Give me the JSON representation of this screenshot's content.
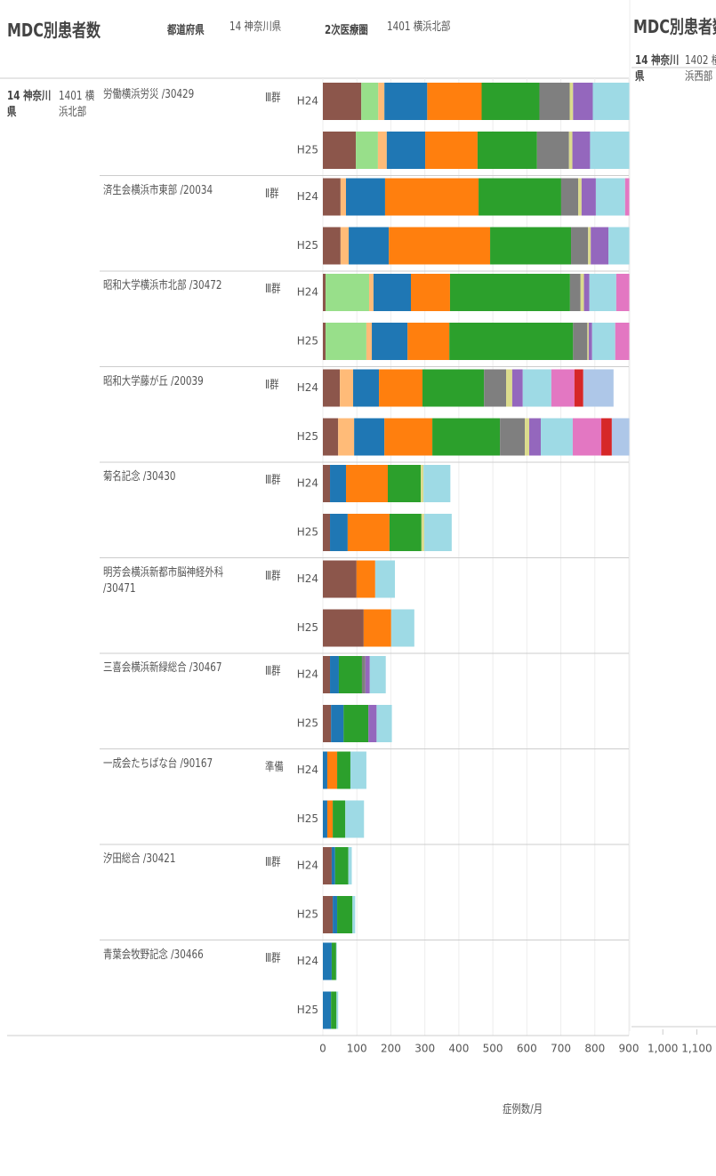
{
  "chart_data": {
    "type": "bar",
    "orientation": "horizontal",
    "stacked": true,
    "title": "MDC別患者数",
    "prefecture_header": "都道府県",
    "prefecture": "14 神奈川県",
    "region_header": "2次医療圏",
    "region": "1401 横浜北部",
    "xlabel": "症例数/月",
    "hospitals": [
      {
        "name": "労働横浜労災 /30429",
        "group": "Ⅲ群"
      },
      {
        "name": "済生会横浜市東部 /20034",
        "group": "Ⅱ群"
      },
      {
        "name": "昭和大学横浜市北部 /30472",
        "group": "Ⅲ群"
      },
      {
        "name": "昭和大学藤が丘 /20039",
        "group": "Ⅱ群"
      },
      {
        "name": "菊名記念 /30430",
        "group": "Ⅲ群"
      },
      {
        "name": "明芳会横浜新都市脳神経外科 /30471",
        "group": "Ⅲ群"
      },
      {
        "name": "三喜会横浜新緑総合 /30467",
        "group": "Ⅲ群"
      },
      {
        "name": "一成会たちばな台 /90167",
        "group": "準備"
      },
      {
        "name": "汐田総合 /30421",
        "group": "Ⅲ群"
      },
      {
        "name": "青葉会牧野記念 /30466",
        "group": "Ⅲ群"
      }
    ],
    "categories": [
      "H24",
      "H25",
      "H24",
      "H25",
      "H24",
      "H25",
      "H24",
      "H25",
      "H24",
      "H25",
      "H24",
      "H25",
      "H24",
      "H25",
      "H24",
      "H25",
      "H24",
      "H25",
      "H24",
      "H25"
    ],
    "series": [
      {
        "color": "#8c564b",
        "values": [
          113,
          97,
          52,
          52,
          8,
          8,
          50,
          45,
          21,
          21,
          99,
          120,
          21,
          24,
          null,
          null,
          26,
          29,
          null,
          null
        ]
      },
      {
        "color": "#98df8a",
        "values": [
          50,
          65,
          null,
          null,
          128,
          120,
          null,
          null,
          null,
          null,
          null,
          null,
          null,
          null,
          null,
          null,
          null,
          null,
          null,
          null
        ]
      },
      {
        "color": "#ffbb78",
        "values": [
          18,
          26,
          16,
          24,
          13,
          16,
          39,
          47,
          null,
          null,
          null,
          null,
          null,
          null,
          null,
          null,
          null,
          null,
          null,
          null
        ]
      },
      {
        "color": "#1f77b4",
        "values": [
          126,
          113,
          115,
          118,
          110,
          105,
          76,
          89,
          47,
          52,
          null,
          null,
          26,
          37,
          13,
          13,
          10,
          13,
          26,
          24
        ]
      },
      {
        "color": "#ff7f0e",
        "values": [
          160,
          154,
          275,
          298,
          115,
          123,
          128,
          141,
          123,
          123,
          55,
          81,
          null,
          null,
          29,
          16,
          null,
          null,
          null,
          null
        ]
      },
      {
        "color": "#2ca02c",
        "values": [
          170,
          175,
          243,
          238,
          353,
          364,
          181,
          199,
          97,
          94,
          null,
          null,
          68,
          73,
          39,
          37,
          39,
          45,
          13,
          16
        ]
      },
      {
        "color": "#7f7f7f",
        "values": [
          89,
          94,
          50,
          50,
          31,
          42,
          65,
          73,
          null,
          null,
          null,
          null,
          10,
          null,
          null,
          null,
          null,
          null,
          null,
          null
        ]
      },
      {
        "color": "#dbdb8d",
        "values": [
          10,
          10,
          10,
          8,
          10,
          4,
          18,
          13,
          8,
          8,
          null,
          null,
          null,
          null,
          null,
          null,
          null,
          null,
          null,
          null
        ]
      },
      {
        "color": "#9467bd",
        "values": [
          58,
          52,
          42,
          52,
          16,
          10,
          31,
          34,
          null,
          null,
          null,
          null,
          13,
          24,
          null,
          null,
          null,
          null,
          null,
          null
        ]
      },
      {
        "color": "#9edae5",
        "values": [
          150,
          150,
          86,
          100,
          79,
          68,
          84,
          94,
          79,
          81,
          58,
          68,
          47,
          45,
          47,
          55,
          10,
          8,
          2,
          5
        ]
      },
      {
        "color": "#e377c2",
        "values": [
          null,
          null,
          16,
          null,
          45,
          45,
          68,
          84,
          null,
          null,
          null,
          null,
          null,
          null,
          null,
          null,
          null,
          null,
          null,
          null
        ]
      },
      {
        "color": "#d62728",
        "values": [
          null,
          null,
          null,
          null,
          null,
          null,
          26,
          31,
          null,
          null,
          null,
          null,
          null,
          null,
          null,
          null,
          null,
          null,
          null,
          null
        ]
      },
      {
        "color": "#aec7e8",
        "values": [
          null,
          null,
          null,
          null,
          null,
          null,
          89,
          58,
          null,
          null,
          null,
          null,
          null,
          null,
          null,
          null,
          null,
          null,
          null,
          null
        ]
      }
    ],
    "xlim": [
      0,
      900
    ],
    "xticks": [
      0,
      100,
      200,
      300,
      400,
      500,
      600,
      700,
      800,
      900
    ],
    "grid": true,
    "next_panel": {
      "title": "MDC別患者数",
      "prefecture": "14 神奈川県",
      "region": "1402 横浜西部",
      "xticks": [
        {
          "value": 1000,
          "label": "1,000"
        },
        {
          "value": 1100,
          "label": "1,100"
        }
      ]
    }
  }
}
